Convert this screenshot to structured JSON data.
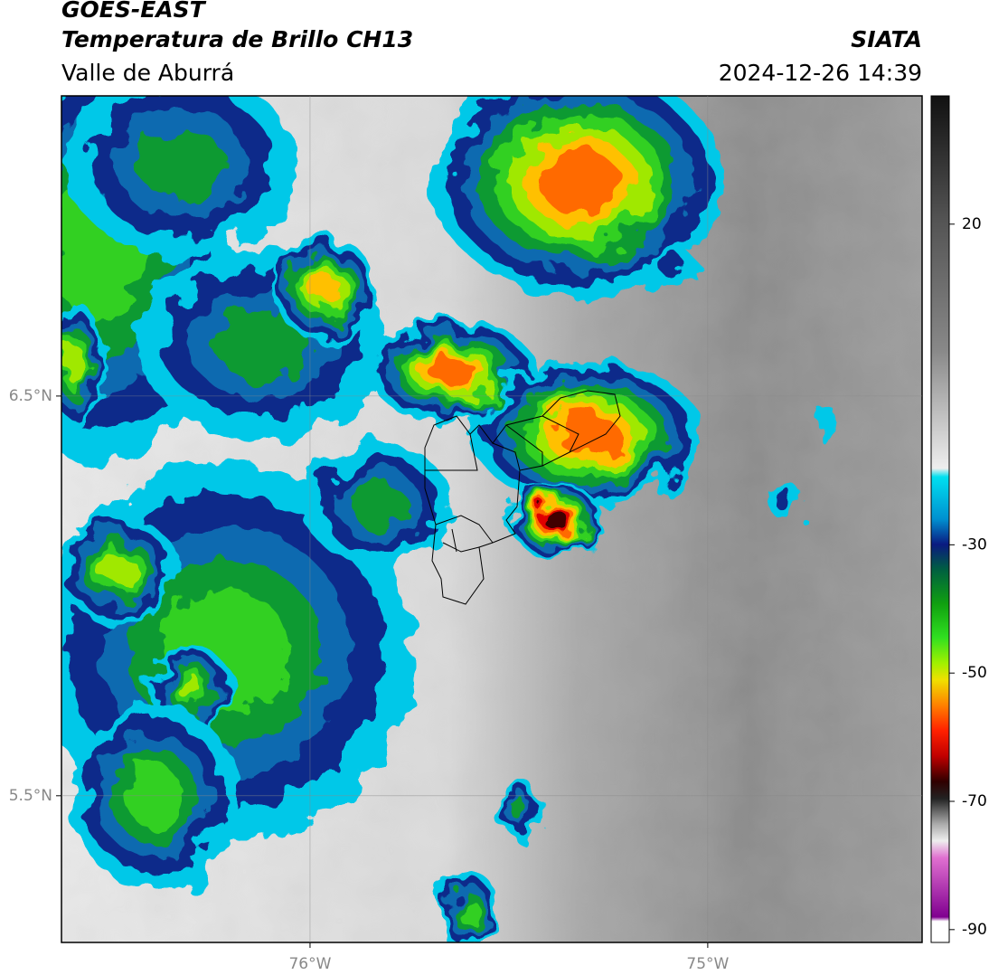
{
  "chart_data": {
    "type": "map",
    "title": "GOES-EAST",
    "subtitle": "Temperatura de Brillo CH13",
    "region": "Valle de Aburrá",
    "source": "SIATA",
    "datetime": "2024-12-26 14:39",
    "xlim": [
      -76.625,
      -74.461
    ],
    "ylim": [
      5.133,
      7.251
    ],
    "xticks": [
      {
        "value": -76,
        "label": "76°W"
      },
      {
        "value": -75,
        "label": "75°W"
      }
    ],
    "yticks": [
      {
        "value": 6.5,
        "label": "6.5°N"
      },
      {
        "value": 5.5,
        "label": "5.5°N"
      }
    ],
    "grid": true,
    "colorbar": {
      "lim": [
        -92,
        40
      ],
      "ticks": [
        -90,
        -70,
        -50,
        -30,
        20
      ]
    }
  }
}
